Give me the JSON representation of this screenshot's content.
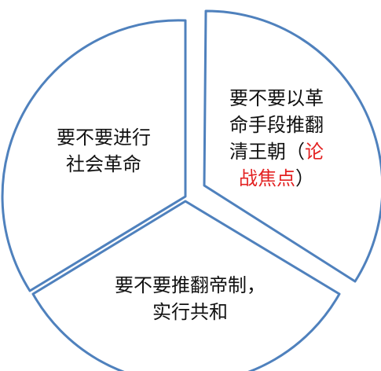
{
  "diagram": {
    "type": "three-part divided circle",
    "colors": {
      "outline": "#4f81bd",
      "fill": "#ffffff",
      "text": "#111111",
      "highlight": "#e32222"
    },
    "segments": {
      "right": {
        "line1": "要不要以革",
        "line2": "命手段推翻",
        "line3_plain": "清王朝（",
        "line3_highlight": "论",
        "line4_highlight": "战焦点",
        "line4_plain": "）"
      },
      "left": {
        "line1": "要不要进行",
        "line2": "社会革命"
      },
      "bottom": {
        "line1": "要不要推翻帝制，",
        "line2": "实行共和"
      }
    }
  }
}
